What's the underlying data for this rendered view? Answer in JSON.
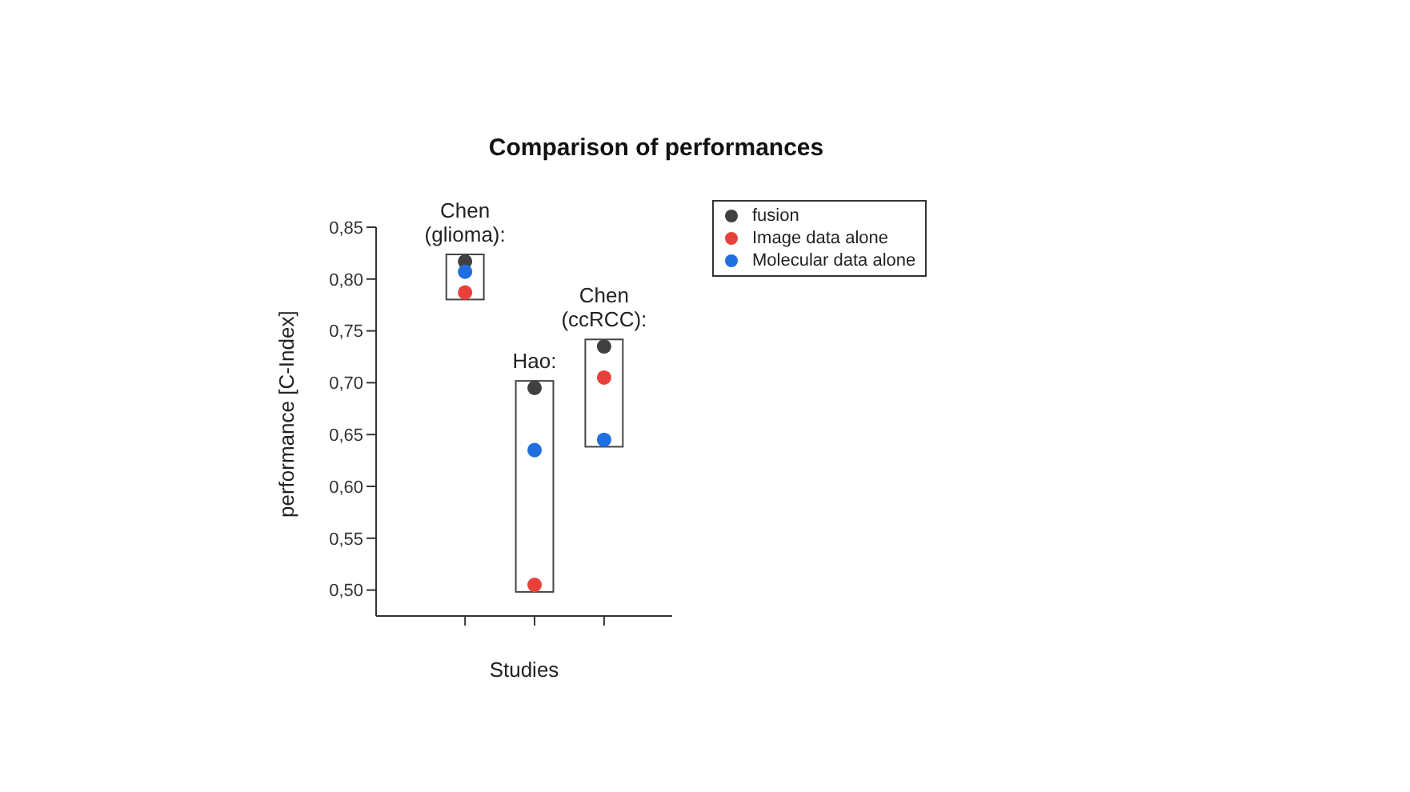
{
  "chart_data": {
    "type": "scatter",
    "title": "Comparison of performances",
    "xlabel": "Studies",
    "ylabel": "performance [C-Index]",
    "categories": [
      null,
      null,
      null
    ],
    "annotations": [
      "Chen\n(glioma):",
      "Hao:",
      "Chen\n(ccRCC):"
    ],
    "series": [
      {
        "name": "fusion",
        "color": "#404040",
        "values": [
          0.817,
          0.695,
          0.735
        ]
      },
      {
        "name": "Image data alone",
        "color": "#e8413c",
        "values": [
          0.787,
          0.505,
          0.705
        ]
      },
      {
        "name": "Molecular data alone",
        "color": "#1f6fe0",
        "values": [
          0.807,
          0.635,
          0.645
        ]
      }
    ],
    "ylim": [
      0.475,
      0.85
    ],
    "yticks": [
      {
        "value": 0.5,
        "label": "0,50"
      },
      {
        "value": 0.55,
        "label": "0,55"
      },
      {
        "value": 0.6,
        "label": "0,60"
      },
      {
        "value": 0.65,
        "label": "0,65"
      },
      {
        "value": 0.7,
        "label": "0,70"
      },
      {
        "value": 0.75,
        "label": "0,75"
      },
      {
        "value": 0.8,
        "label": "0,80"
      },
      {
        "value": 0.85,
        "label": "0,85"
      }
    ],
    "tick_labels": "y",
    "marker": "circle",
    "legend": "top right",
    "grid": false
  }
}
